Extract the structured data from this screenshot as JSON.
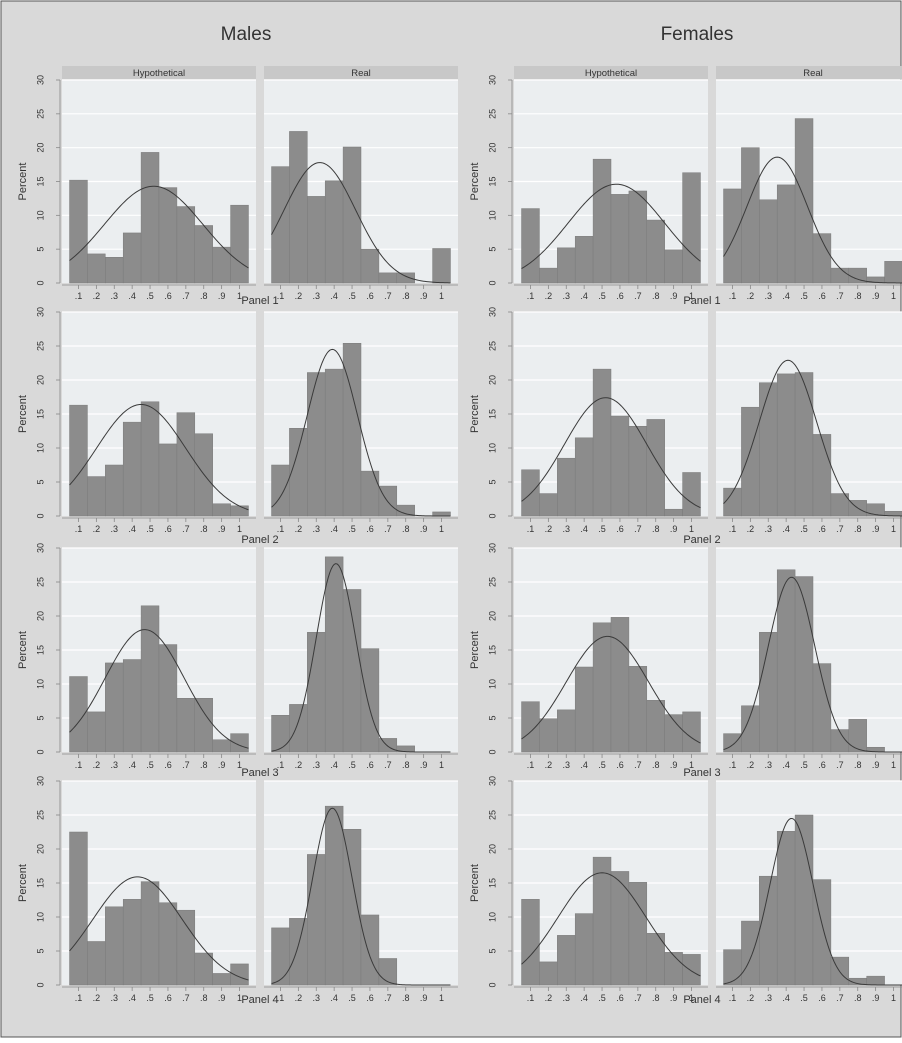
{
  "group_titles": [
    "Males",
    "Females"
  ],
  "chart_data": {
    "type": "bar",
    "note_series": "Histograms of a 0-1 variable in bins of 0.1 with fitted normal density curves",
    "tick_labels": [
      ".1",
      ".2",
      ".3",
      ".4",
      ".5",
      ".6",
      ".7",
      ".8",
      ".9",
      "1"
    ],
    "ylabel": "Percent",
    "ylim": [
      0,
      30
    ],
    "yticks": [
      0,
      5,
      10,
      15,
      20,
      25,
      30
    ],
    "column_labels": [
      "Hypothetical",
      "Real"
    ],
    "groups": [
      {
        "title": "Males",
        "panels": [
          {
            "title": "Panel 1",
            "hypothetical": {
              "values": [
                15.2,
                4.3,
                3.8,
                7.4,
                19.3,
                14.1,
                11.3,
                8.5,
                5.3,
                11.5
              ],
              "curve": {
                "mean": 0.52,
                "sd": 0.275,
                "peak": 14.3
              }
            },
            "real": {
              "values": [
                17.2,
                22.4,
                12.8,
                15.1,
                20.1,
                5.0,
                1.5,
                1.5,
                0.0,
                5.1
              ],
              "curve": {
                "mean": 0.32,
                "sd": 0.2,
                "peak": 17.8
              }
            }
          },
          {
            "title": "Panel 2",
            "hypothetical": {
              "values": [
                16.3,
                5.8,
                7.5,
                13.8,
                16.8,
                10.6,
                15.2,
                12.1,
                1.8,
                1.5
              ],
              "curve": {
                "mean": 0.45,
                "sd": 0.25,
                "peak": 16.4
              }
            },
            "real": {
              "values": [
                7.5,
                12.9,
                21.1,
                21.6,
                25.4,
                6.6,
                4.4,
                1.6,
                0.0,
                0.6
              ],
              "curve": {
                "mean": 0.39,
                "sd": 0.14,
                "peak": 24.5
              }
            }
          },
          {
            "title": "Panel 3",
            "hypothetical": {
              "values": [
                11.1,
                5.9,
                13.1,
                13.6,
                21.5,
                15.8,
                7.9,
                7.9,
                1.8,
                2.7
              ],
              "curve": {
                "mean": 0.47,
                "sd": 0.22,
                "peak": 18.0
              }
            },
            "real": {
              "values": [
                5.4,
                7.0,
                17.6,
                28.7,
                23.9,
                15.2,
                2.0,
                0.9,
                0.0,
                0.0
              ],
              "curve": {
                "mean": 0.41,
                "sd": 0.11,
                "peak": 27.7
              }
            }
          },
          {
            "title": "Panel 4",
            "hypothetical": {
              "values": [
                22.5,
                6.4,
                11.5,
                12.6,
                15.2,
                12.1,
                11.0,
                4.7,
                1.7,
                3.1
              ],
              "curve": {
                "mean": 0.43,
                "sd": 0.25,
                "peak": 15.9
              }
            },
            "real": {
              "values": [
                8.4,
                9.8,
                19.2,
                26.3,
                22.9,
                10.3,
                3.9,
                0.0,
                0.0,
                0.0
              ],
              "curve": {
                "mean": 0.39,
                "sd": 0.11,
                "peak": 26.0
              }
            }
          }
        ]
      },
      {
        "title": "Females",
        "panels": [
          {
            "title": "Panel 1",
            "hypothetical": {
              "values": [
                11.0,
                2.2,
                5.2,
                6.9,
                18.3,
                13.1,
                13.6,
                9.3,
                4.9,
                16.3
              ],
              "curve": {
                "mean": 0.58,
                "sd": 0.27,
                "peak": 14.6
              }
            },
            "real": {
              "values": [
                13.9,
                20.0,
                12.3,
                14.5,
                24.3,
                7.3,
                2.2,
                2.2,
                0.9,
                3.2
              ],
              "curve": {
                "mean": 0.35,
                "sd": 0.17,
                "peak": 18.6
              }
            }
          },
          {
            "title": "Panel 2",
            "hypothetical": {
              "values": [
                6.8,
                3.3,
                8.5,
                11.5,
                21.6,
                14.7,
                13.2,
                14.2,
                1.0,
                6.4
              ],
              "curve": {
                "mean": 0.52,
                "sd": 0.23,
                "peak": 17.4
              }
            },
            "real": {
              "values": [
                4.1,
                16.0,
                19.6,
                20.9,
                21.1,
                12.0,
                3.3,
                2.3,
                1.8,
                0.7
              ],
              "curve": {
                "mean": 0.41,
                "sd": 0.16,
                "peak": 22.9
              }
            }
          },
          {
            "title": "Panel 3",
            "hypothetical": {
              "values": [
                7.4,
                4.9,
                6.2,
                12.5,
                19.0,
                19.8,
                12.6,
                7.6,
                5.5,
                5.9
              ],
              "curve": {
                "mean": 0.53,
                "sd": 0.23,
                "peak": 17.0
              }
            },
            "real": {
              "values": [
                2.7,
                6.8,
                17.6,
                26.8,
                25.8,
                13.0,
                3.3,
                4.8,
                0.7,
                0.0
              ],
              "curve": {
                "mean": 0.43,
                "sd": 0.13,
                "peak": 25.7
              }
            }
          },
          {
            "title": "Panel 4",
            "hypothetical": {
              "values": [
                12.6,
                3.4,
                7.3,
                10.5,
                18.8,
                16.7,
                15.1,
                7.6,
                4.8,
                4.5
              ],
              "curve": {
                "mean": 0.5,
                "sd": 0.245,
                "peak": 16.5
              }
            },
            "real": {
              "values": [
                5.2,
                9.4,
                16.0,
                22.6,
                25.0,
                15.5,
                4.1,
                1.0,
                1.3,
                0.0
              ],
              "curve": {
                "mean": 0.43,
                "sd": 0.12,
                "peak": 24.5
              }
            }
          }
        ]
      }
    ]
  },
  "colors": {
    "outer_background": "#d9d9d9",
    "plot_background": "#ebeef0",
    "strip_background": "#c8c8c8",
    "bar_fill": "#8c8c8c",
    "gridline": "#ffffff",
    "curve": "#3a3a3a",
    "text": "#333333"
  }
}
